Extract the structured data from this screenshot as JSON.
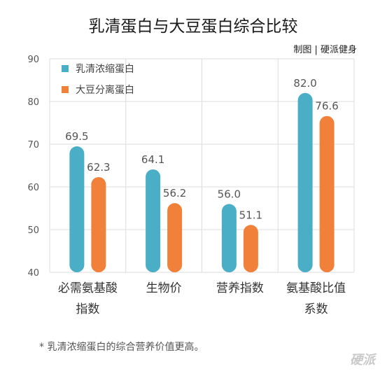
{
  "chart_data": {
    "type": "bar",
    "title": "乳清蛋白与大豆蛋白综合比较",
    "credit": "制图 | 硬派健身",
    "categories": [
      [
        "必需氨基酸",
        "指数"
      ],
      [
        "生物价"
      ],
      [
        "营养指数"
      ],
      [
        "氨基酸比值",
        "系数"
      ]
    ],
    "series": [
      {
        "name": "乳清浓缩蛋白",
        "values": [
          69.5,
          64.1,
          56.0,
          82.0
        ],
        "labels": [
          "69.5",
          "64.1",
          "56.0",
          "82.0"
        ],
        "color": "#4aaec6"
      },
      {
        "name": "大豆分离蛋白",
        "values": [
          62.3,
          56.2,
          51.1,
          76.6
        ],
        "labels": [
          "62.3",
          "56.2",
          "51.1",
          "76.6"
        ],
        "color": "#f0803a"
      }
    ],
    "ylim": [
      40,
      90
    ],
    "yticks": [
      40,
      50,
      60,
      70,
      80,
      90
    ],
    "grid": true,
    "legend_position": "top-left",
    "footnote": "* 乳清浓缩蛋白的综合营养价值更高。",
    "watermark": "硬派"
  }
}
